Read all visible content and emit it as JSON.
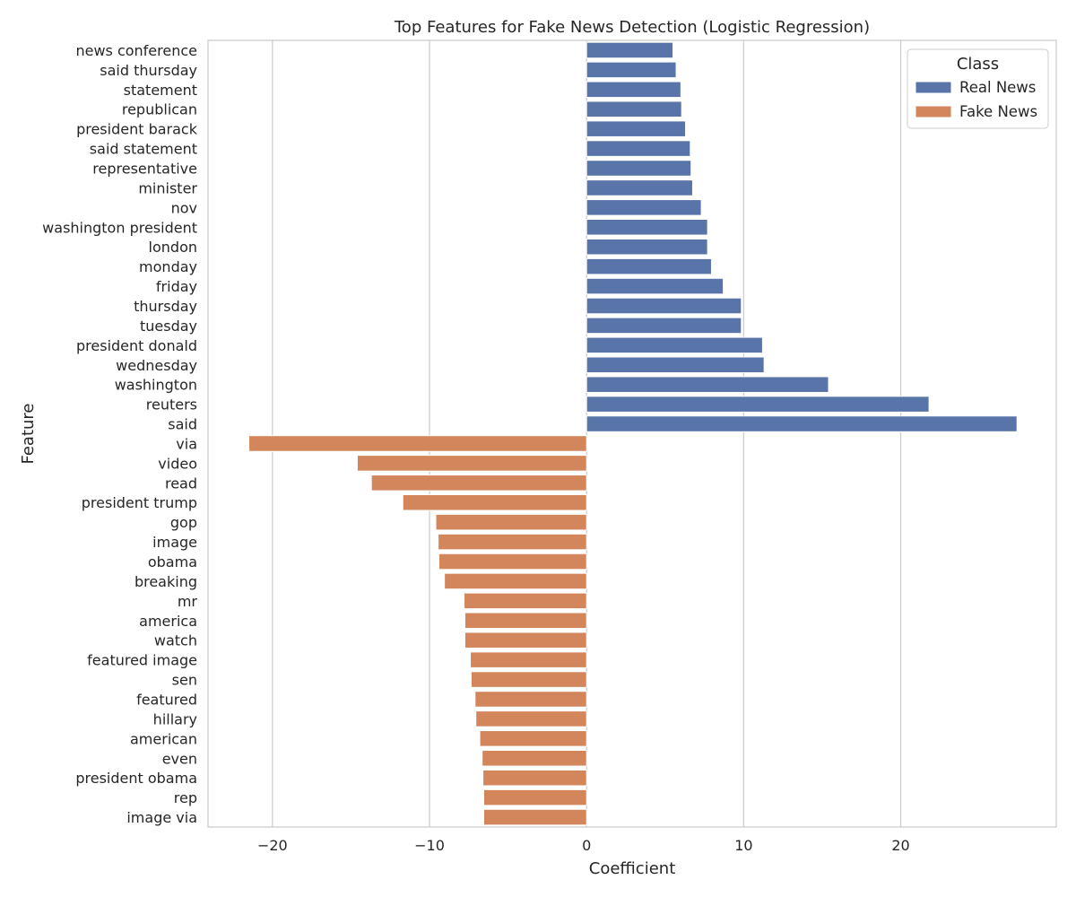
{
  "chart_data": {
    "type": "bar",
    "orientation": "horizontal",
    "title": "Top Features for Fake News Detection (Logistic Regression)",
    "xlabel": "Coefficient",
    "ylabel": "Feature",
    "xlim": [
      -24.1,
      29.9
    ],
    "xticks": [
      -20,
      -10,
      0,
      10,
      20
    ],
    "xtick_labels": [
      "−20",
      "−10",
      "0",
      "10",
      "20"
    ],
    "grid": "vertical",
    "legend": {
      "title": "Class",
      "placement": "top-right",
      "entries": [
        {
          "label": "Real News",
          "color": "#5874a8"
        },
        {
          "label": "Fake News",
          "color": "#d3865b"
        }
      ]
    },
    "categories": [
      "news conference",
      "said thursday",
      "statement",
      "republican",
      "president barack",
      "said statement",
      "representative",
      "minister",
      "nov",
      "washington president",
      "london",
      "monday",
      "friday",
      "thursday",
      "tuesday",
      "president donald",
      "wednesday",
      "washington",
      "reuters",
      "said",
      "via",
      "video",
      "read",
      "president trump",
      "gop",
      "image",
      "obama",
      "breaking",
      "mr",
      "america",
      "watch",
      "featured image",
      "sen",
      "featured",
      "hillary",
      "american",
      "even",
      "president obama",
      "rep",
      "image via"
    ],
    "series": [
      {
        "name": "Real News",
        "color": "#5874a8",
        "values": [
          5.5,
          5.7,
          6.0,
          6.05,
          6.3,
          6.6,
          6.65,
          6.75,
          7.3,
          7.7,
          7.7,
          7.95,
          8.7,
          9.85,
          9.85,
          11.2,
          11.3,
          15.4,
          21.8,
          27.4,
          null,
          null,
          null,
          null,
          null,
          null,
          null,
          null,
          null,
          null,
          null,
          null,
          null,
          null,
          null,
          null,
          null,
          null,
          null,
          null
        ]
      },
      {
        "name": "Fake News",
        "color": "#d3865b",
        "values": [
          null,
          null,
          null,
          null,
          null,
          null,
          null,
          null,
          null,
          null,
          null,
          null,
          null,
          null,
          null,
          null,
          null,
          null,
          null,
          null,
          -21.5,
          -14.6,
          -13.7,
          -11.7,
          -9.6,
          -9.45,
          -9.4,
          -9.05,
          -7.8,
          -7.75,
          -7.75,
          -7.4,
          -7.35,
          -7.1,
          -7.05,
          -6.8,
          -6.65,
          -6.6,
          -6.55,
          -6.55
        ]
      }
    ]
  }
}
